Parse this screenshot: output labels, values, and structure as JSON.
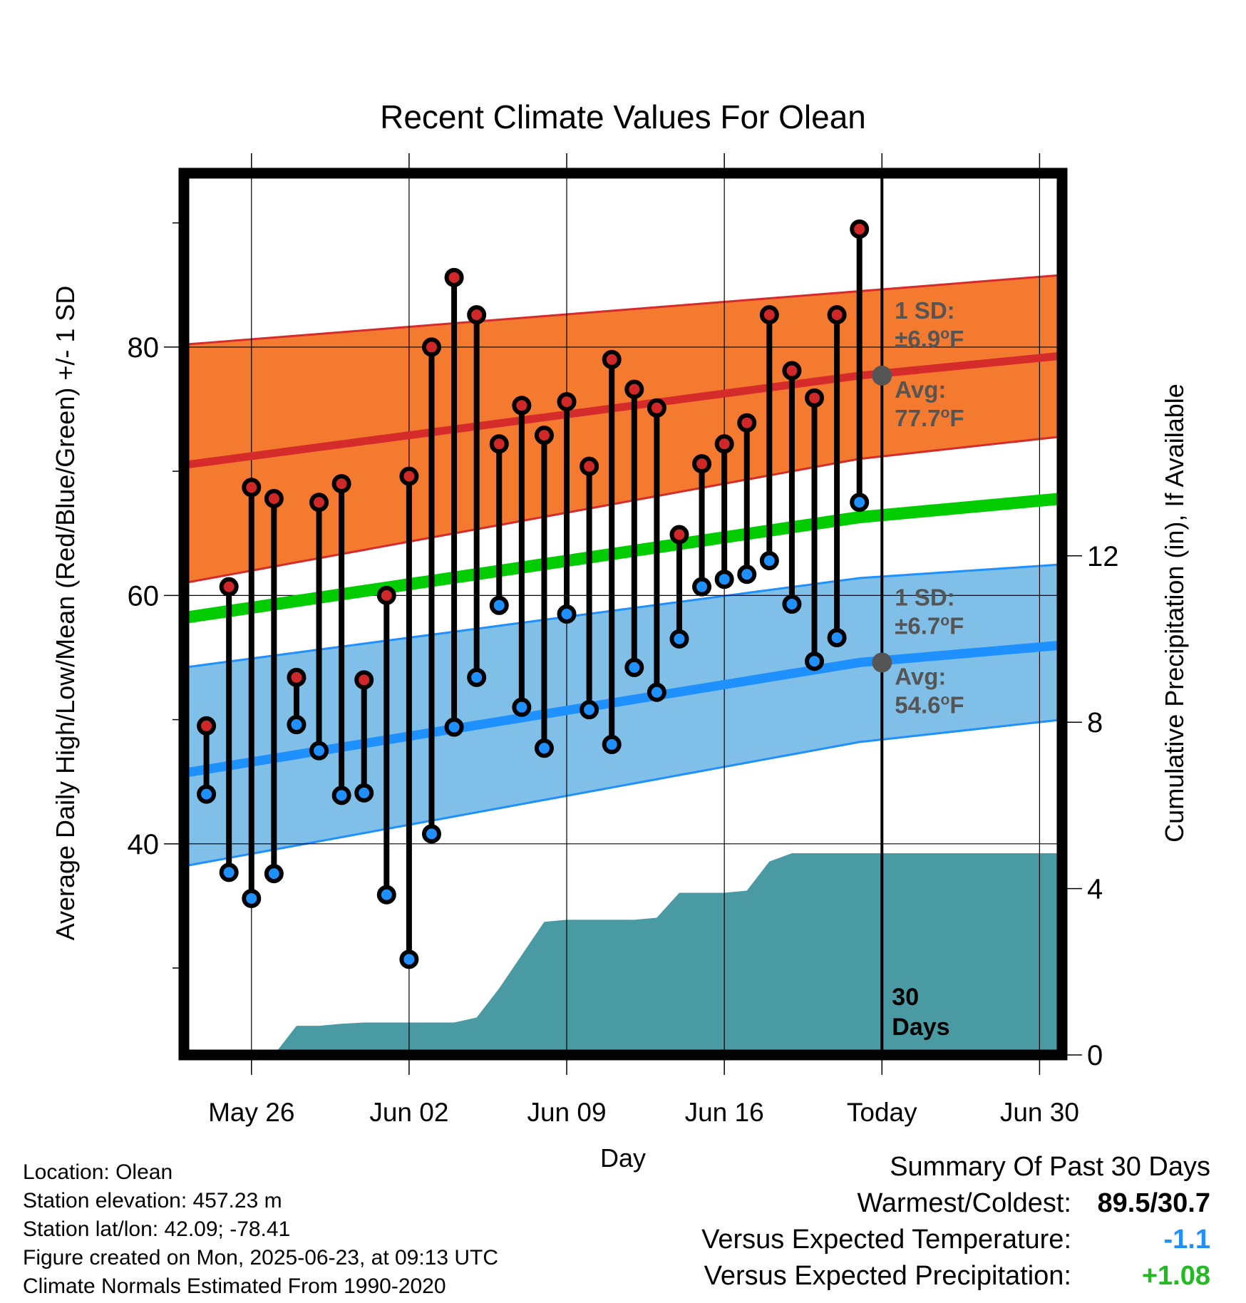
{
  "chart_data": {
    "type": "line",
    "title": "Recent Climate Values For Olean",
    "xlabel": "Day",
    "ylabel_left": "Average Daily High/Low/Mean (Red/Blue/Green) +/- 1 SD",
    "ylabel_right": "Cumulative Precipitation (in), If Available",
    "x_ticks": [
      "May 26",
      "Jun 02",
      "Jun 09",
      "Jun 16",
      "Today",
      "Jun 30"
    ],
    "x_range": [
      "May 23",
      "Jul 01"
    ],
    "ylim_left": [
      23,
      94
    ],
    "ylim_right": [
      0,
      21.2
    ],
    "y_ticks_left": [
      40,
      60,
      80
    ],
    "y_ticks_right": [
      0,
      4,
      8,
      12
    ],
    "grid": true,
    "dates": [
      "May 24",
      "May 25",
      "May 26",
      "May 27",
      "May 28",
      "May 29",
      "May 30",
      "May 31",
      "Jun 01",
      "Jun 02",
      "Jun 03",
      "Jun 04",
      "Jun 05",
      "Jun 06",
      "Jun 07",
      "Jun 08",
      "Jun 09",
      "Jun 10",
      "Jun 11",
      "Jun 12",
      "Jun 13",
      "Jun 14",
      "Jun 15",
      "Jun 16",
      "Jun 17",
      "Jun 18",
      "Jun 19",
      "Jun 20",
      "Jun 21",
      "Jun 22"
    ],
    "daily_high": [
      49.5,
      60.7,
      68.7,
      67.8,
      53.4,
      67.5,
      69.0,
      53.2,
      60.0,
      69.6,
      80.0,
      85.6,
      82.6,
      72.2,
      75.3,
      72.9,
      75.6,
      70.4,
      79.0,
      76.6,
      75.1,
      64.9,
      70.6,
      72.2,
      73.9,
      82.6,
      78.1,
      75.9,
      82.6,
      89.5
    ],
    "daily_low": [
      44.0,
      37.7,
      35.6,
      37.6,
      49.6,
      47.5,
      43.9,
      44.1,
      35.9,
      30.7,
      40.8,
      49.4,
      53.4,
      59.2,
      51.0,
      47.7,
      58.5,
      50.8,
      48.0,
      54.2,
      52.2,
      56.5,
      60.7,
      61.3,
      61.7,
      62.8,
      59.3,
      54.7,
      56.6,
      67.5
    ],
    "normals": {
      "dates": [
        "May 23",
        "Jun 22",
        "Jul 01"
      ],
      "avg_high": [
        70.5,
        77.7,
        79.3
      ],
      "high_sd_upper": [
        80.2,
        84.5,
        85.8
      ],
      "high_sd_lower": [
        61.0,
        71.0,
        72.8
      ],
      "avg_mean": [
        58.2,
        66.3,
        67.8
      ],
      "avg_low": [
        45.7,
        54.6,
        56.0
      ],
      "low_sd_upper": [
        54.2,
        61.4,
        62.5
      ],
      "low_sd_lower": [
        38.2,
        48.2,
        50.0
      ]
    },
    "precip_cumulative": {
      "dates": [
        "May 25",
        "May 26",
        "May 27",
        "May 28",
        "May 29",
        "May 30",
        "May 31",
        "Jun 01",
        "Jun 02",
        "Jun 03",
        "Jun 04",
        "Jun 05",
        "Jun 06",
        "Jun 07",
        "Jun 08",
        "Jun 09",
        "Jun 10",
        "Jun 11",
        "Jun 12",
        "Jun 13",
        "Jun 14",
        "Jun 15",
        "Jun 16",
        "Jun 17",
        "Jun 18",
        "Jun 19",
        "Jun 20",
        "Jul 01"
      ],
      "values": [
        0.0,
        0.0,
        0.0,
        0.7,
        0.7,
        0.75,
        0.78,
        0.78,
        0.78,
        0.78,
        0.78,
        0.9,
        1.6,
        2.4,
        3.2,
        3.25,
        3.25,
        3.25,
        3.25,
        3.3,
        3.9,
        3.9,
        3.9,
        3.95,
        4.65,
        4.85,
        4.85,
        4.85
      ]
    },
    "annotations": {
      "high_sd": [
        "1 SD:",
        "±6.9°F"
      ],
      "high_avg": [
        "Avg:",
        "77.7°F"
      ],
      "low_sd": [
        "1 SD:",
        "±6.7°F"
      ],
      "low_avg": [
        "Avg:",
        "54.6°F"
      ],
      "days_label": [
        "30",
        "Days"
      ]
    },
    "colors": {
      "high_band": "#f47a30",
      "high_line": "#d62b2b",
      "high_dot": "#d02828",
      "mean_line": "#00cc00",
      "low_band": "#80c0e8",
      "low_line": "#1e90ff",
      "low_dot": "#1e90ff",
      "precip": "#4a9aa4",
      "annotation": "#555555"
    }
  },
  "info": {
    "location": "Location: Olean",
    "elevation": "Station elevation: 457.23 m",
    "latlon": "Station lat/lon: 42.09; -78.41",
    "created": "Figure created on Mon, 2025-06-23, at 09:13 UTC",
    "normals": "Climate Normals Estimated From 1990-2020"
  },
  "summary": {
    "title": "Summary Of Past 30 Days",
    "warm_cold_label": "Warmest/Coldest:",
    "warm_cold_value": "89.5/30.7",
    "temp_label": "Versus Expected Temperature:",
    "temp_value": "-1.1",
    "temp_color": "#1e90ff",
    "precip_label": "Versus Expected Precipitation:",
    "precip_value": "+1.08",
    "precip_color": "#22bb22"
  }
}
